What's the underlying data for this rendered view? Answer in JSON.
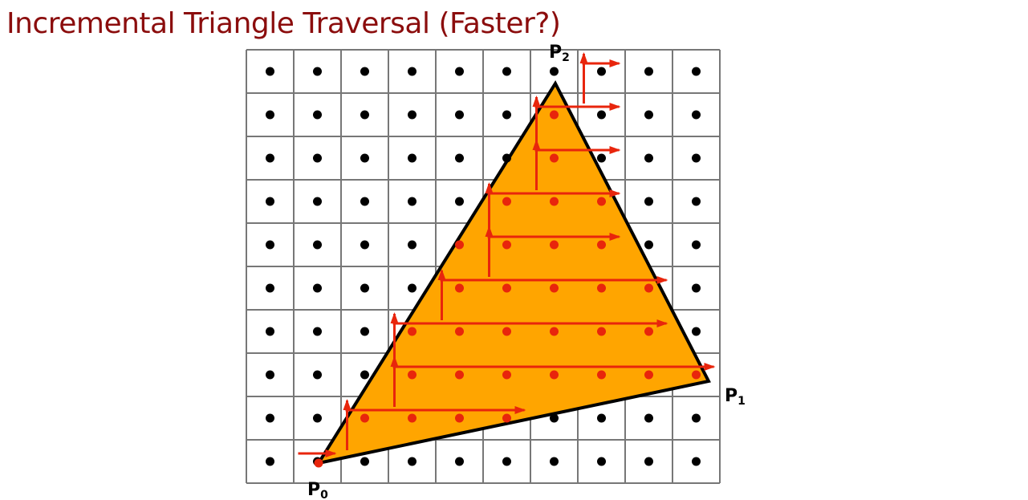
{
  "slide": {
    "title": "Incremental Triangle Traversal (Faster?)"
  },
  "diagram": {
    "grid": {
      "columns": 10,
      "rows": 10
    },
    "colors": {
      "grid_line": "#777777",
      "sample_dot": "#000000",
      "triangle_fill": "#ffa500",
      "triangle_edge": "#000000",
      "traversal": "#e8250c"
    },
    "vertices": [
      {
        "id": "p0",
        "label": "P",
        "sub": "0"
      },
      {
        "id": "p1",
        "label": "P",
        "sub": "1"
      },
      {
        "id": "p2",
        "label": "P",
        "sub": "2"
      }
    ],
    "traversal_rows": [
      {
        "row": 0,
        "start": 1,
        "end": 1
      },
      {
        "row": 1,
        "start": 2,
        "end": 5
      },
      {
        "row": 2,
        "start": 3,
        "end": 9
      },
      {
        "row": 3,
        "start": 3,
        "end": 8
      },
      {
        "row": 4,
        "start": 4,
        "end": 8
      },
      {
        "row": 5,
        "start": 5,
        "end": 7
      },
      {
        "row": 6,
        "start": 5,
        "end": 7
      },
      {
        "row": 7,
        "start": 6,
        "end": 7
      },
      {
        "row": 8,
        "start": 6,
        "end": 7
      },
      {
        "row": 9,
        "start": 7,
        "end": 7
      }
    ]
  }
}
